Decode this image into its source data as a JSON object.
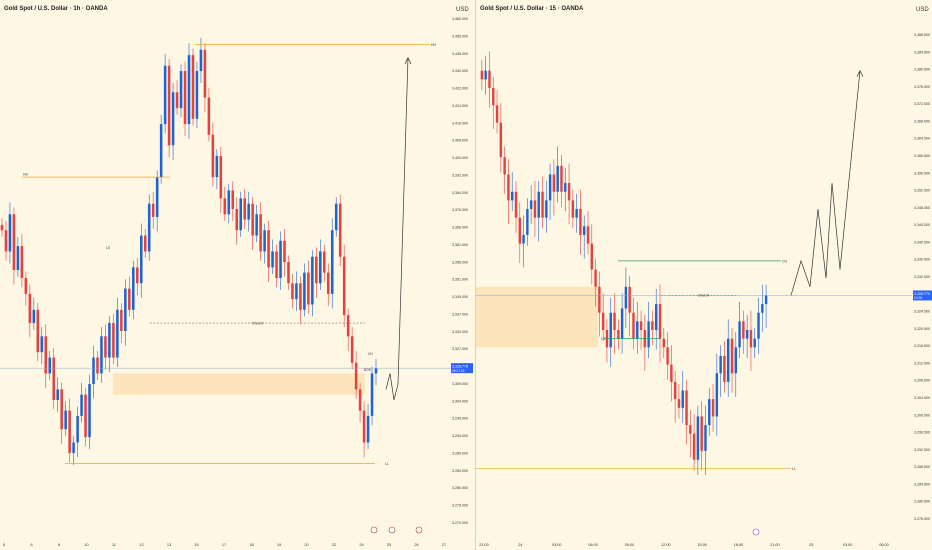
{
  "colors": {
    "background": "#fef7e3",
    "bull": "#1e63d6",
    "bear": "#e5413e",
    "zone": "#fbe0b4",
    "level": "#f2a23a",
    "green": "#2e9e6b",
    "price_tag": "#2962ff",
    "grid_text": "#333333"
  },
  "panes": [
    {
      "title": "Gold Spot / U.S. Dollar · 1h · OANDA",
      "currency": "USD",
      "price_ticks": [
        "3,460.000",
        "3,455.000",
        "3,445.000",
        "3,440.000",
        "3,432.000",
        "3,424.000",
        "3,416.000",
        "3,408.000",
        "3,400.000",
        "3,392.000",
        "3,384.000",
        "3,376.000",
        "3,368.000",
        "3,361.000",
        "3,356.000",
        "3,351.000",
        "3,345.000",
        "3,337.000",
        "3,332.000",
        "3,327.000",
        "3,319.000",
        "3,309.000",
        "3,304.000",
        "3,299.000",
        "3,294.000",
        "3,289.000",
        "3,284.000",
        "3,280.000",
        "3,275.000",
        "3,270.000"
      ],
      "time_ticks": [
        "5",
        "6",
        "8",
        "10",
        "11",
        "12",
        "13",
        "15",
        "17",
        "18",
        "19",
        "20",
        "22",
        "24",
        "25",
        "26",
        "27"
      ],
      "current_price": "3,328.775",
      "countdown": "09:27:29",
      "labels": {
        "hh": "HH",
        "hs": "HS",
        "ls": "LS",
        "ch": "CH",
        "choch": "ChoCH",
        "ll": "LL",
        "bos": "BOS"
      },
      "chart_data": {
        "type": "candlestick",
        "timeframe": "1h",
        "ylim": [
          3270,
          3460
        ],
        "close": [
          3380,
          3372,
          3386,
          3365,
          3374,
          3362,
          3356,
          3345,
          3350,
          3334,
          3340,
          3326,
          3332,
          3316,
          3320,
          3305,
          3312,
          3296,
          3300,
          3310,
          3318,
          3302,
          3322,
          3332,
          3326,
          3340,
          3332,
          3345,
          3332,
          3350,
          3342,
          3358,
          3350,
          3366,
          3360,
          3378,
          3372,
          3390,
          3385,
          3400,
          3420,
          3442,
          3412,
          3432,
          3426,
          3440,
          3420,
          3446,
          3422,
          3440,
          3448,
          3430,
          3416,
          3400,
          3408,
          3392,
          3386,
          3395,
          3388,
          3380,
          3392,
          3384,
          3390,
          3378,
          3386,
          3372,
          3380,
          3366,
          3372,
          3362,
          3376,
          3368,
          3360,
          3354,
          3360,
          3350,
          3364,
          3352,
          3370,
          3360,
          3372,
          3364,
          3356,
          3380,
          3390,
          3370,
          3348,
          3340,
          3330,
          3320,
          3312,
          3300,
          3310,
          3326,
          3328
        ],
        "annotations": {
          "hh_level": 3450,
          "hs_level": 3400,
          "ls_level": 3345,
          "choch_level": 3345,
          "zone_range": [
            3318,
            3326
          ],
          "ll_level": 3292,
          "projection_target": 3445
        }
      }
    },
    {
      "title": "Gold Spot / U.S. Dollar · 15 · OANDA",
      "currency": "USD",
      "price_ticks": [
        "3,388.500",
        "3,384.500",
        "3,380.500",
        "3,376.500",
        "3,372.500",
        "3,368.500",
        "3,364.500",
        "3,360.500",
        "3,356.500",
        "3,352.500",
        "3,348.500",
        "3,344.500",
        "3,340.500",
        "3,336.500",
        "3,332.500",
        "3,328.500",
        "3,324.500",
        "3,320.500",
        "3,316.500",
        "3,312.500",
        "3,308.500",
        "3,304.500",
        "3,300.500",
        "3,296.500",
        "3,292.500",
        "3,288.500",
        "3,284.500",
        "3,280.500",
        "3,276.500"
      ],
      "time_ticks": [
        "22:00",
        "24",
        "03:00",
        "06:00",
        "09:00",
        "12:00",
        "15:00",
        "18:00",
        "21:00",
        "25",
        "03:00",
        "06:00"
      ],
      "current_price": "3,328.775",
      "countdown": "10:28",
      "labels": {
        "ch": "CH",
        "choch": "ChoCH",
        "ll": "LL",
        "ls": "LS"
      },
      "chart_data": {
        "type": "candlestick",
        "timeframe": "15m",
        "ylim": [
          3276.5,
          3388.5
        ],
        "close": [
          3378,
          3380,
          3376,
          3372,
          3368,
          3360,
          3356,
          3350,
          3352,
          3346,
          3340,
          3342,
          3348,
          3350,
          3346,
          3352,
          3346,
          3350,
          3356,
          3352,
          3358,
          3352,
          3354,
          3350,
          3346,
          3348,
          3342,
          3344,
          3340,
          3334,
          3330,
          3324,
          3320,
          3316,
          3324,
          3320,
          3318,
          3325,
          3330,
          3324,
          3318,
          3322,
          3320,
          3316,
          3322,
          3320,
          3326,
          3318,
          3316,
          3312,
          3308,
          3304,
          3302,
          3306,
          3298,
          3296,
          3290,
          3300,
          3292,
          3298,
          3304,
          3300,
          3310,
          3314,
          3308,
          3318,
          3310,
          3316,
          3322,
          3318,
          3320,
          3316,
          3318,
          3324,
          3326,
          3328
        ],
        "annotations": {
          "ch_level": 3336,
          "choch_level": 3328,
          "zone_range": [
            3316,
            3330
          ],
          "ls_level": 3318,
          "ll_level": 3288,
          "projection_path": [
            3328,
            3336,
            3330,
            3348,
            3332,
            3354,
            3334,
            3380
          ]
        }
      }
    }
  ]
}
